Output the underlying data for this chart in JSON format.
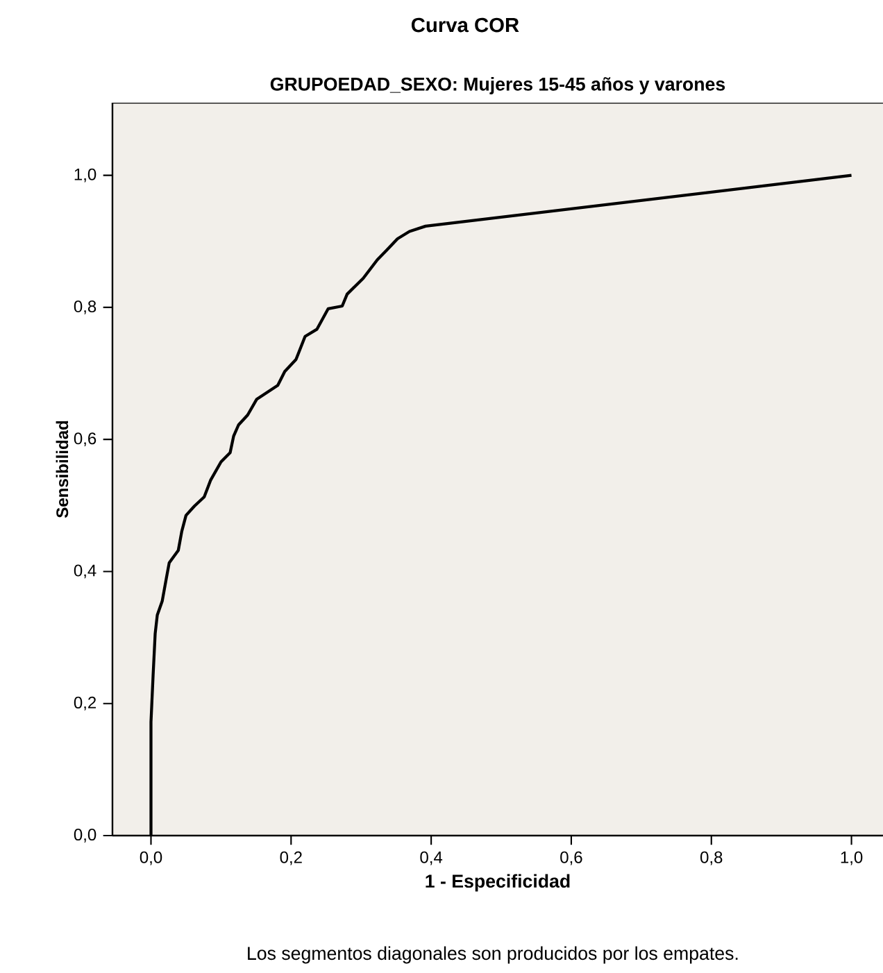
{
  "chart_data": {
    "type": "line",
    "title": "Curva COR",
    "subtitle": "GRUPOEDAD_SEXO: Mujeres 15-45 años y varones",
    "xlabel": "1 - Especificidad",
    "ylabel": "Sensibilidad",
    "annotations": [
      "Los segmentos diagonales son producidos por los empates."
    ],
    "x": [
      0,
      0,
      0.003,
      0.006,
      0.009,
      0.016,
      0.022,
      0.026,
      0.039,
      0.044,
      0.05,
      0.062,
      0.076,
      0.085,
      0.1,
      0.113,
      0.118,
      0.125,
      0.138,
      0.151,
      0.181,
      0.191,
      0.207,
      0.22,
      0.237,
      0.253,
      0.273,
      0.28,
      0.303,
      0.323,
      0.336,
      0.352,
      0.369,
      0.392,
      1
    ],
    "values": [
      0,
      0.172,
      0.242,
      0.306,
      0.334,
      0.355,
      0.39,
      0.413,
      0.432,
      0.461,
      0.485,
      0.499,
      0.513,
      0.538,
      0.566,
      0.58,
      0.605,
      0.622,
      0.637,
      0.661,
      0.682,
      0.703,
      0.721,
      0.756,
      0.767,
      0.798,
      0.802,
      0.82,
      0.844,
      0.872,
      0.886,
      0.904,
      0.915,
      0.923,
      1
    ],
    "color": "#000000",
    "marker": "none",
    "line_style": "solid",
    "xlim": [
      -0.055,
      1.045
    ],
    "ylim": [
      0,
      1.11
    ],
    "xticks": [
      {
        "value": 0,
        "label": "0,0"
      },
      {
        "value": 0.2,
        "label": "0,2"
      },
      {
        "value": 0.4,
        "label": "0,4"
      },
      {
        "value": 0.6,
        "label": "0,6"
      },
      {
        "value": 0.8,
        "label": "0,8"
      },
      {
        "value": 1,
        "label": "1,0"
      }
    ],
    "yticks": [
      {
        "value": 0,
        "label": "0,0"
      },
      {
        "value": 0.2,
        "label": "0,2"
      },
      {
        "value": 0.4,
        "label": "0,4"
      },
      {
        "value": 0.6,
        "label": "0,6"
      },
      {
        "value": 0.8,
        "label": "0,8"
      },
      {
        "value": 1,
        "label": "1,0"
      }
    ]
  }
}
